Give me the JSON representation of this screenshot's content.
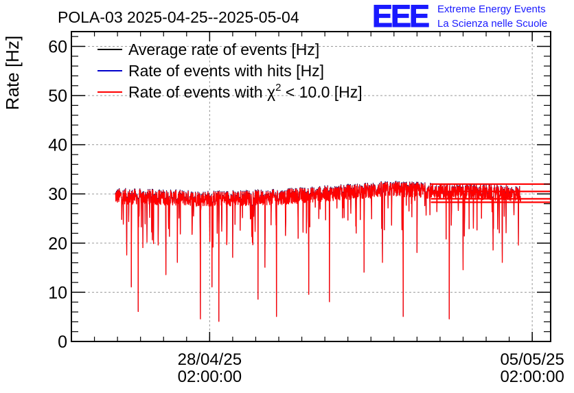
{
  "logo": {
    "text": "EEE",
    "line1": "Extreme Energy Events",
    "line2": "La Scienza nelle Scuole",
    "color": "#1a1aff"
  },
  "chart_data": {
    "type": "line",
    "title": "POLA-03 2025-04-25--2025-05-04",
    "xlabel": "",
    "ylabel": "Rate [Hz]",
    "ylim": [
      0,
      63
    ],
    "yticks": [
      0,
      10,
      20,
      30,
      40,
      50,
      60
    ],
    "xlim_days": [
      0,
      10.4
    ],
    "xticks": [
      {
        "day": 3.0,
        "line1": "28/04/25",
        "line2": "02:00:00"
      },
      {
        "day": 10.0,
        "line1": "05/05/25",
        "line2": "02:00:00"
      }
    ],
    "grid": true,
    "legend_position": "top-left",
    "series": [
      {
        "name": "Average rate of events [Hz]",
        "color": "#000000"
      },
      {
        "name": "Rate of events with hits [Hz]",
        "color": "#0000cc"
      },
      {
        "name": "Rate of events with χ2 < 10.0 [Hz]",
        "name_prefix": "Rate of events with ",
        "name_chi": "χ",
        "name_sup": "2",
        "name_suffix": " < 10.0 [Hz]",
        "color": "#ff0000"
      }
    ],
    "data_range_days": [
      0.95,
      9.75
    ],
    "trend": [
      [
        0.95,
        29.5
      ],
      [
        3.0,
        29.0
      ],
      [
        4.5,
        29.3
      ],
      [
        5.5,
        30.0
      ],
      [
        7.0,
        31.0
      ],
      [
        8.0,
        30.5
      ],
      [
        9.75,
        30.0
      ]
    ],
    "noise_amplitude": 1.6,
    "dips": [
      [
        1.2,
        17.5
      ],
      [
        1.3,
        11.0
      ],
      [
        1.45,
        6.0
      ],
      [
        1.55,
        19.0
      ],
      [
        2.05,
        13.5
      ],
      [
        2.3,
        16.0
      ],
      [
        2.8,
        4.5
      ],
      [
        3.2,
        4.0
      ],
      [
        3.05,
        11.0
      ],
      [
        3.5,
        17.0
      ],
      [
        4.05,
        8.5
      ],
      [
        4.2,
        15.0
      ],
      [
        4.45,
        5.0
      ],
      [
        5.15,
        9.5
      ],
      [
        5.6,
        8.0
      ],
      [
        6.35,
        14.0
      ],
      [
        6.75,
        16.0
      ],
      [
        7.2,
        5.0
      ],
      [
        7.5,
        18.0
      ],
      [
        8.2,
        4.5
      ],
      [
        8.5,
        14.5
      ],
      [
        9.15,
        18.5
      ],
      [
        9.35,
        16.0
      ],
      [
        9.7,
        19.5
      ]
    ],
    "tail_lines": [
      32.0,
      30.5,
      29.0,
      28.3
    ],
    "tail_extent_days": [
      7.8,
      10.4
    ]
  }
}
